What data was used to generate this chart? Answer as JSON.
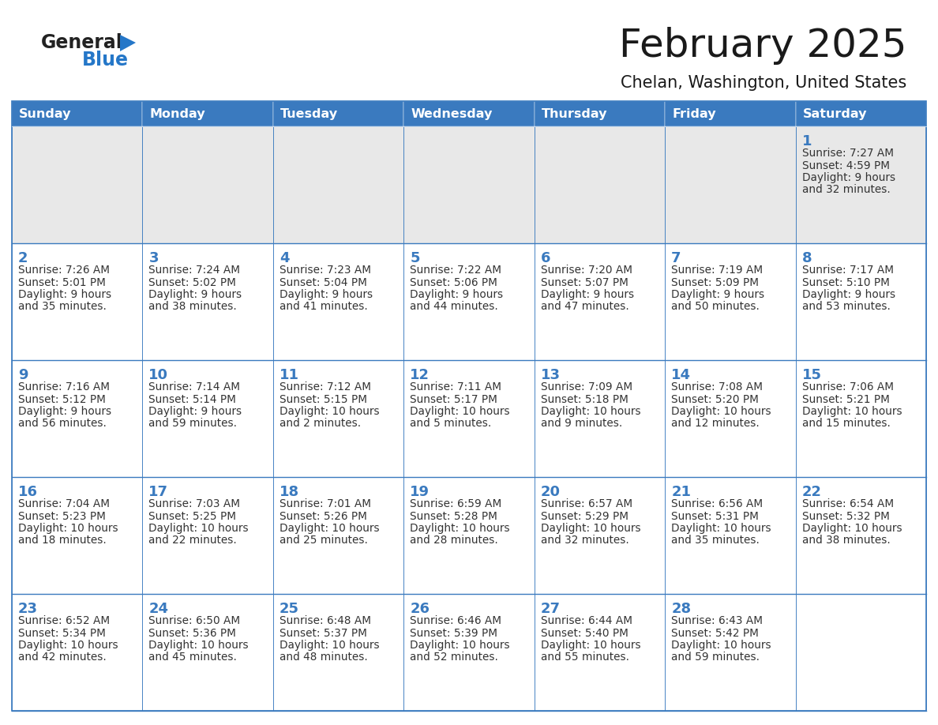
{
  "title": "February 2025",
  "subtitle": "Chelan, Washington, United States",
  "header_bg": "#3a7abf",
  "header_text_color": "#FFFFFF",
  "row1_bg": "#e8e8e8",
  "row_even_bg": "#FFFFFF",
  "row_odd_bg": "#FFFFFF",
  "cell_border_color": "#3a7abf",
  "day_number_color": "#3a7abf",
  "day_text_color": "#333333",
  "weekdays": [
    "Sunday",
    "Monday",
    "Tuesday",
    "Wednesday",
    "Thursday",
    "Friday",
    "Saturday"
  ],
  "title_color": "#1a1a1a",
  "subtitle_color": "#1a1a1a",
  "generalblue_black": "#222222",
  "generalblue_blue": "#2577C8",
  "logo_triangle_color": "#2577C8",
  "calendar_data": [
    [
      null,
      null,
      null,
      null,
      null,
      null,
      {
        "day": 1,
        "sunrise": "7:27 AM",
        "sunset": "4:59 PM",
        "daylight_line1": "9 hours",
        "daylight_line2": "and 32 minutes."
      }
    ],
    [
      {
        "day": 2,
        "sunrise": "7:26 AM",
        "sunset": "5:01 PM",
        "daylight_line1": "9 hours",
        "daylight_line2": "and 35 minutes."
      },
      {
        "day": 3,
        "sunrise": "7:24 AM",
        "sunset": "5:02 PM",
        "daylight_line1": "9 hours",
        "daylight_line2": "and 38 minutes."
      },
      {
        "day": 4,
        "sunrise": "7:23 AM",
        "sunset": "5:04 PM",
        "daylight_line1": "9 hours",
        "daylight_line2": "and 41 minutes."
      },
      {
        "day": 5,
        "sunrise": "7:22 AM",
        "sunset": "5:06 PM",
        "daylight_line1": "9 hours",
        "daylight_line2": "and 44 minutes."
      },
      {
        "day": 6,
        "sunrise": "7:20 AM",
        "sunset": "5:07 PM",
        "daylight_line1": "9 hours",
        "daylight_line2": "and 47 minutes."
      },
      {
        "day": 7,
        "sunrise": "7:19 AM",
        "sunset": "5:09 PM",
        "daylight_line1": "9 hours",
        "daylight_line2": "and 50 minutes."
      },
      {
        "day": 8,
        "sunrise": "7:17 AM",
        "sunset": "5:10 PM",
        "daylight_line1": "9 hours",
        "daylight_line2": "and 53 minutes."
      }
    ],
    [
      {
        "day": 9,
        "sunrise": "7:16 AM",
        "sunset": "5:12 PM",
        "daylight_line1": "9 hours",
        "daylight_line2": "and 56 minutes."
      },
      {
        "day": 10,
        "sunrise": "7:14 AM",
        "sunset": "5:14 PM",
        "daylight_line1": "9 hours",
        "daylight_line2": "and 59 minutes."
      },
      {
        "day": 11,
        "sunrise": "7:12 AM",
        "sunset": "5:15 PM",
        "daylight_line1": "10 hours",
        "daylight_line2": "and 2 minutes."
      },
      {
        "day": 12,
        "sunrise": "7:11 AM",
        "sunset": "5:17 PM",
        "daylight_line1": "10 hours",
        "daylight_line2": "and 5 minutes."
      },
      {
        "day": 13,
        "sunrise": "7:09 AM",
        "sunset": "5:18 PM",
        "daylight_line1": "10 hours",
        "daylight_line2": "and 9 minutes."
      },
      {
        "day": 14,
        "sunrise": "7:08 AM",
        "sunset": "5:20 PM",
        "daylight_line1": "10 hours",
        "daylight_line2": "and 12 minutes."
      },
      {
        "day": 15,
        "sunrise": "7:06 AM",
        "sunset": "5:21 PM",
        "daylight_line1": "10 hours",
        "daylight_line2": "and 15 minutes."
      }
    ],
    [
      {
        "day": 16,
        "sunrise": "7:04 AM",
        "sunset": "5:23 PM",
        "daylight_line1": "10 hours",
        "daylight_line2": "and 18 minutes."
      },
      {
        "day": 17,
        "sunrise": "7:03 AM",
        "sunset": "5:25 PM",
        "daylight_line1": "10 hours",
        "daylight_line2": "and 22 minutes."
      },
      {
        "day": 18,
        "sunrise": "7:01 AM",
        "sunset": "5:26 PM",
        "daylight_line1": "10 hours",
        "daylight_line2": "and 25 minutes."
      },
      {
        "day": 19,
        "sunrise": "6:59 AM",
        "sunset": "5:28 PM",
        "daylight_line1": "10 hours",
        "daylight_line2": "and 28 minutes."
      },
      {
        "day": 20,
        "sunrise": "6:57 AM",
        "sunset": "5:29 PM",
        "daylight_line1": "10 hours",
        "daylight_line2": "and 32 minutes."
      },
      {
        "day": 21,
        "sunrise": "6:56 AM",
        "sunset": "5:31 PM",
        "daylight_line1": "10 hours",
        "daylight_line2": "and 35 minutes."
      },
      {
        "day": 22,
        "sunrise": "6:54 AM",
        "sunset": "5:32 PM",
        "daylight_line1": "10 hours",
        "daylight_line2": "and 38 minutes."
      }
    ],
    [
      {
        "day": 23,
        "sunrise": "6:52 AM",
        "sunset": "5:34 PM",
        "daylight_line1": "10 hours",
        "daylight_line2": "and 42 minutes."
      },
      {
        "day": 24,
        "sunrise": "6:50 AM",
        "sunset": "5:36 PM",
        "daylight_line1": "10 hours",
        "daylight_line2": "and 45 minutes."
      },
      {
        "day": 25,
        "sunrise": "6:48 AM",
        "sunset": "5:37 PM",
        "daylight_line1": "10 hours",
        "daylight_line2": "and 48 minutes."
      },
      {
        "day": 26,
        "sunrise": "6:46 AM",
        "sunset": "5:39 PM",
        "daylight_line1": "10 hours",
        "daylight_line2": "and 52 minutes."
      },
      {
        "day": 27,
        "sunrise": "6:44 AM",
        "sunset": "5:40 PM",
        "daylight_line1": "10 hours",
        "daylight_line2": "and 55 minutes."
      },
      {
        "day": 28,
        "sunrise": "6:43 AM",
        "sunset": "5:42 PM",
        "daylight_line1": "10 hours",
        "daylight_line2": "and 59 minutes."
      },
      null
    ]
  ]
}
